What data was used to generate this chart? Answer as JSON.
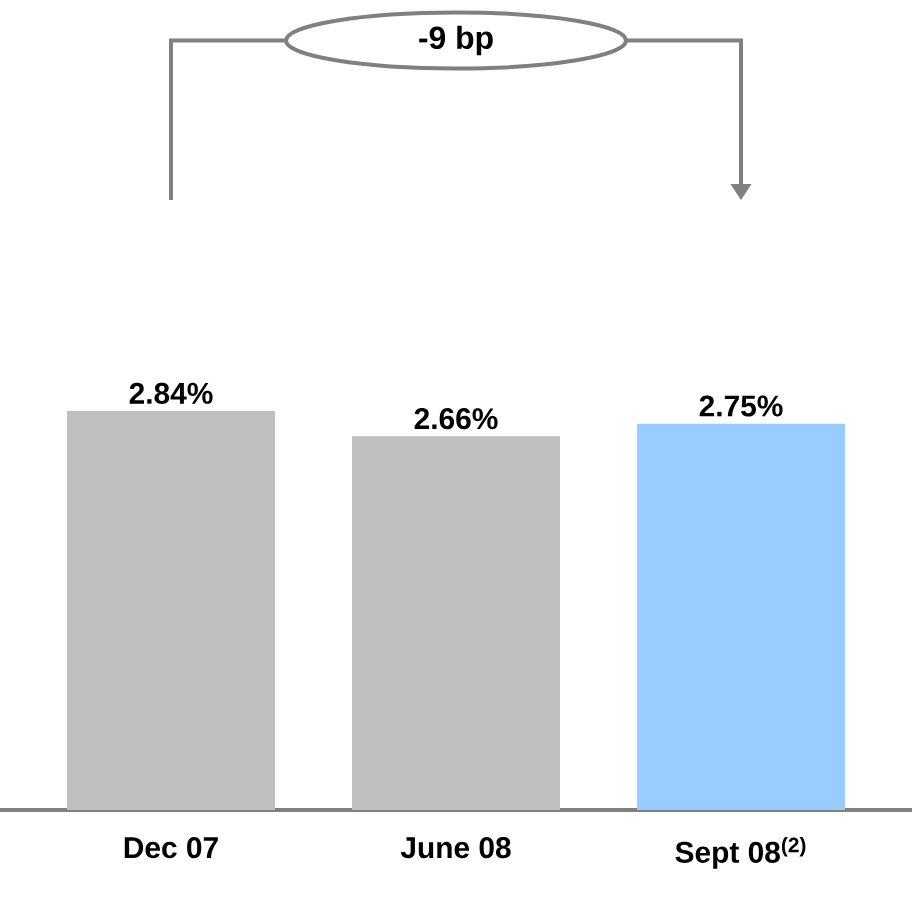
{
  "chart_data": {
    "type": "bar",
    "categories": [
      "Dec 07",
      "June 08",
      "Sept 08$^{(2)}$"
    ],
    "values": [
      2.84,
      2.66,
      2.75
    ],
    "value_labels": [
      "2.84%",
      "2.66%",
      "2.75%"
    ],
    "colors": [
      "#c0c0c0",
      "#c0c0c0",
      "#99ccff"
    ],
    "tick_labels": "x",
    "annotations": [
      "-9 bp"
    ]
  }
}
